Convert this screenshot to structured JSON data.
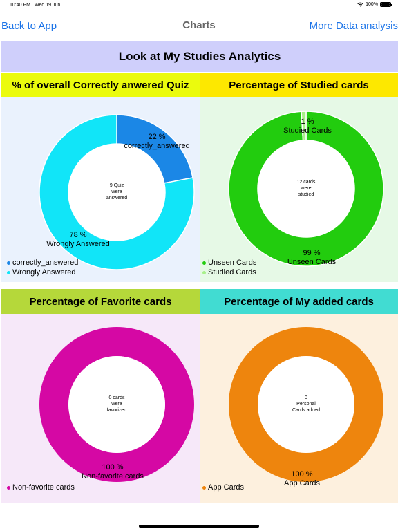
{
  "status": {
    "time": "10:40 PM",
    "date": "Wed 19 Jun",
    "battery": "100%"
  },
  "nav": {
    "back_label": "Back to App",
    "title": "Charts",
    "more_label": "More Data analysis"
  },
  "banner": {
    "title": "Look at My Studies Analytics"
  },
  "panels": [
    {
      "header": "% of overall Correctly anwered Quiz",
      "header_color": "#ebfb0d",
      "bg_color": "#eaf2fd",
      "center_text": [
        "9 Quiz",
        "were",
        "answered"
      ],
      "labels": [
        {
          "pct": "22 %",
          "name": "correctly_answered"
        },
        {
          "pct": "78 %",
          "name": "Wrongly Answered"
        }
      ],
      "legend": [
        "correctly_answered",
        "Wrongly Answered"
      ],
      "colors": [
        "#1b87e6",
        "#11e5f8"
      ]
    },
    {
      "header": "Percentage of Studied cards",
      "header_color": "#fde800",
      "bg_color": "#e6f9e6",
      "center_text": [
        "12 cards",
        "were",
        "studied"
      ],
      "labels": [
        {
          "pct": "1 %",
          "name": "Studied Cards"
        },
        {
          "pct": "99 %",
          "name": "Unseen Cards"
        }
      ],
      "legend": [
        "Unseen Cards",
        "Studied Cards"
      ],
      "colors": [
        "#22cc0e",
        "#a8f08a"
      ]
    },
    {
      "header": "Percentage of Favorite cards",
      "header_color": "#b5d83a",
      "bg_color": "#f6e8f9",
      "center_text": [
        "0 cards",
        "were",
        "favorized"
      ],
      "labels": [
        {
          "pct": "100 %",
          "name": "Non-favorite cards"
        }
      ],
      "legend": [
        "Non-favorite cards"
      ],
      "colors": [
        "#d508a4"
      ]
    },
    {
      "header": "Percentage of My added cards",
      "header_color": "#41dcd2",
      "bg_color": "#fdf0de",
      "center_text": [
        "0",
        "Personal",
        "Cards added"
      ],
      "labels": [
        {
          "pct": "100 %",
          "name": "App Cards"
        }
      ],
      "legend": [
        "App Cards"
      ],
      "colors": [
        "#ee850d"
      ]
    }
  ],
  "chart_data": [
    {
      "type": "pie",
      "categories": [
        "correctly_answered",
        "Wrongly Answered"
      ],
      "values": [
        22,
        78
      ]
    },
    {
      "type": "pie",
      "categories": [
        "Unseen Cards",
        "Studied Cards"
      ],
      "values": [
        99,
        1
      ]
    },
    {
      "type": "pie",
      "categories": [
        "Non-favorite cards"
      ],
      "values": [
        100
      ]
    },
    {
      "type": "pie",
      "categories": [
        "App Cards"
      ],
      "values": [
        100
      ]
    }
  ]
}
